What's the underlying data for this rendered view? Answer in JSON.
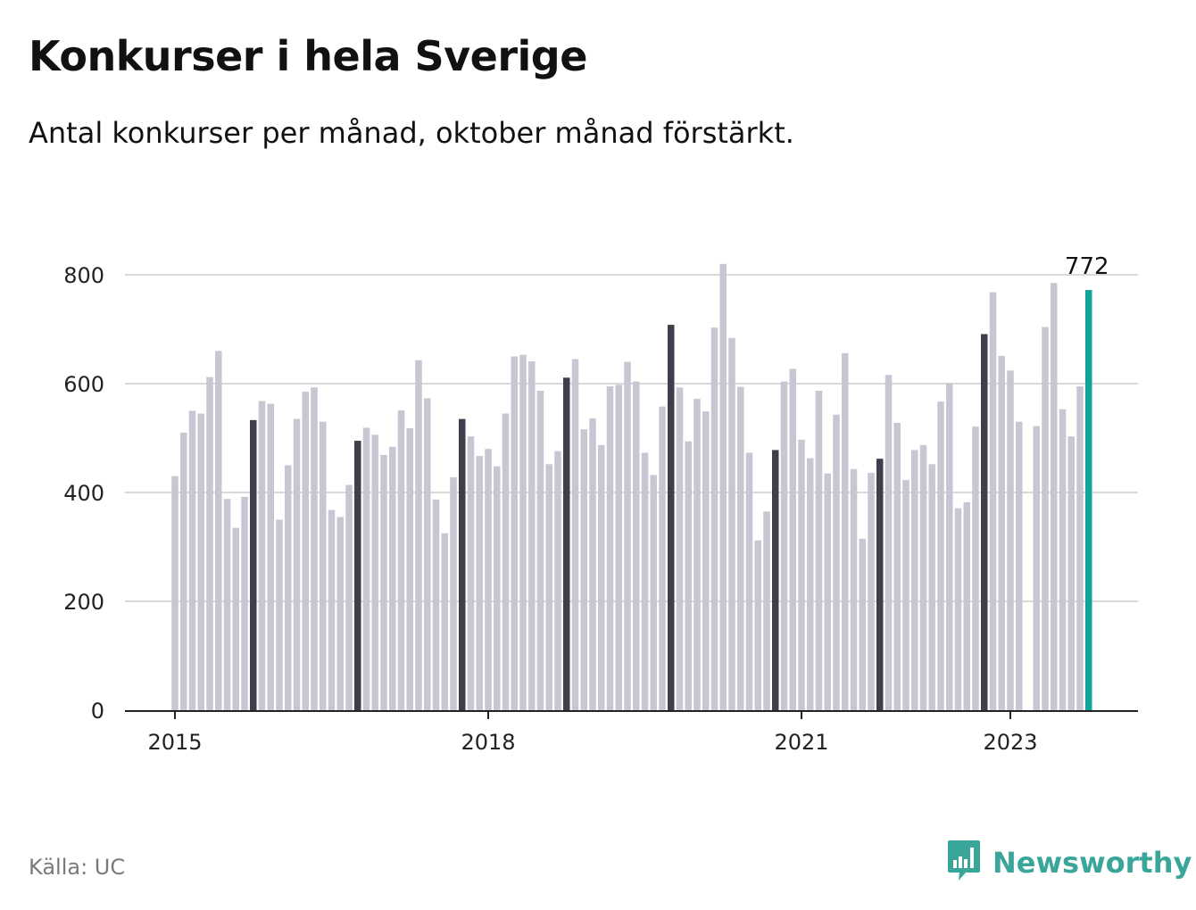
{
  "header": {
    "title": "Konkurser i hela Sverige",
    "subtitle": "Antal konkurser per månad, oktober månad förstärkt."
  },
  "footer": {
    "source": "Källa: UC",
    "brand": "Newsworthy",
    "brand_icon": "bar-chart-logo-icon"
  },
  "colors": {
    "bar": "#c7c6d2",
    "highlight": "#3e3e4c",
    "latest": "#12a39a",
    "grid": "#d9d9d9",
    "axis": "#222222",
    "brand": "#3aa69a"
  },
  "chart_data": {
    "type": "bar",
    "x_start": "2015-01",
    "x_end": "2023-10",
    "ylim": [
      0,
      820
    ],
    "yticks": [
      0,
      200,
      400,
      600,
      800
    ],
    "xticks": [
      {
        "label": "2015",
        "month": "2015-01"
      },
      {
        "label": "2018",
        "month": "2018-01"
      },
      {
        "label": "2021",
        "month": "2021-01"
      },
      {
        "label": "2023",
        "month": "2023-01"
      }
    ],
    "highlight_month": "October",
    "latest_label": "772",
    "grid": true,
    "values": [
      430,
      510,
      550,
      545,
      612,
      660,
      388,
      335,
      392,
      533,
      568,
      563,
      350,
      450,
      535,
      585,
      593,
      530,
      368,
      355,
      414,
      495,
      519,
      506,
      469,
      484,
      551,
      518,
      643,
      573,
      387,
      325,
      428,
      535,
      503,
      467,
      480,
      448,
      545,
      650,
      653,
      641,
      587,
      452,
      476,
      611,
      645,
      516,
      536,
      487,
      595,
      598,
      640,
      604,
      473,
      432,
      558,
      708,
      593,
      494,
      572,
      549,
      703,
      820,
      684,
      594,
      473,
      312,
      365,
      478,
      604,
      627,
      497,
      463,
      587,
      435,
      543,
      656,
      443,
      315,
      436,
      462,
      616,
      528,
      423,
      478,
      487,
      452,
      567,
      601,
      371,
      382,
      521,
      691,
      768,
      651,
      624,
      530,
      null,
      522,
      704,
      785,
      553,
      503,
      595,
      772
    ]
  }
}
